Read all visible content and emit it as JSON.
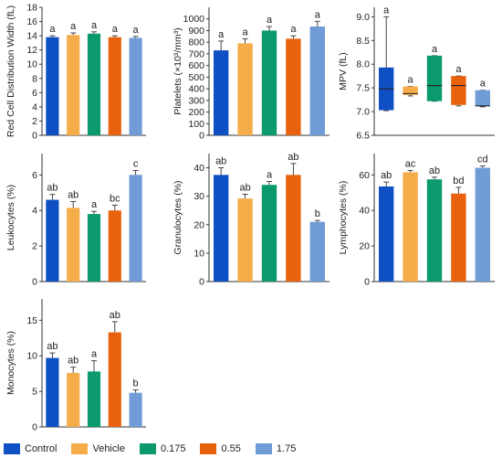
{
  "colors": [
    "#0f4fc4",
    "#f5ad4a",
    "#0a9a6e",
    "#e8610c",
    "#6f9bd7"
  ],
  "legend": [
    "Control",
    "Vehicle",
    "0.175",
    "0.55",
    "1.75"
  ],
  "chart_data": [
    {
      "type": "bar",
      "ylabel": "Red Cell Distribution Width (fL)",
      "ylim": [
        0,
        18
      ],
      "yticks": [
        "0",
        "2",
        "4",
        "6",
        "8",
        "10",
        "12",
        "14",
        "16",
        "18"
      ],
      "values": [
        13.8,
        14.1,
        14.3,
        13.8,
        13.7
      ],
      "errors": [
        0.2,
        0.3,
        0.25,
        0.2,
        0.2
      ],
      "letters": [
        "a",
        "a",
        "a",
        "a",
        "a"
      ]
    },
    {
      "type": "bar",
      "ylabel": "Platelets (×10³/mm³)",
      "ylim": [
        0,
        1100
      ],
      "yticks": [
        "0",
        "100",
        "200",
        "300",
        "400",
        "500",
        "600",
        "700",
        "800",
        "900",
        "1000"
      ],
      "values": [
        730,
        790,
        900,
        830,
        935
      ],
      "errors": [
        80,
        40,
        35,
        25,
        45
      ],
      "letters": [
        "a",
        "a",
        "a",
        "a",
        "a"
      ]
    },
    {
      "type": "boxplot",
      "ylabel": "MPV (fL)",
      "ylim": [
        6.5,
        9.2
      ],
      "yticks": [
        "6.5",
        "7.0",
        "7.5",
        "8.0",
        "8.5",
        "9.0"
      ],
      "boxes": [
        {
          "min": 7.02,
          "q1": 7.03,
          "median": 7.48,
          "q3": 7.93,
          "max": 9.0
        },
        {
          "min": 7.33,
          "q1": 7.35,
          "median": 7.38,
          "q3": 7.53,
          "max": 7.53
        },
        {
          "min": 7.22,
          "q1": 7.22,
          "median": 7.55,
          "q3": 8.18,
          "max": 8.18
        },
        {
          "min": 7.12,
          "q1": 7.14,
          "median": 7.55,
          "q3": 7.75,
          "max": 7.75
        },
        {
          "min": 7.1,
          "q1": 7.12,
          "median": 7.12,
          "q3": 7.45,
          "max": 7.45
        }
      ],
      "letters": [
        "a",
        "a",
        "a",
        "a",
        "a"
      ]
    },
    {
      "type": "bar",
      "ylabel": "Leukocytes (%)",
      "ylim": [
        0,
        7.2
      ],
      "yticks": [
        "0",
        "2",
        "4",
        "6"
      ],
      "values": [
        4.6,
        4.15,
        3.8,
        4.0,
        6.0
      ],
      "errors": [
        0.3,
        0.35,
        0.15,
        0.3,
        0.25
      ],
      "letters": [
        "ab",
        "ab",
        "a",
        "bc",
        "c"
      ]
    },
    {
      "type": "bar",
      "ylabel": "Granulocytes (%)",
      "ylim": [
        0,
        45
      ],
      "yticks": [
        "0",
        "10",
        "20",
        "30",
        "40"
      ],
      "values": [
        37.5,
        29.2,
        34.0,
        37.5,
        21.0
      ],
      "errors": [
        2.5,
        1.5,
        1.2,
        4.0,
        0.5
      ],
      "letters": [
        "ab",
        "ab",
        "a",
        "ab",
        "b"
      ]
    },
    {
      "type": "bar",
      "ylabel": "Lymphocytes (%)",
      "ylim": [
        0,
        72
      ],
      "yticks": [
        "0",
        "20",
        "40",
        "60"
      ],
      "values": [
        53.5,
        61.5,
        57.5,
        49.5,
        64.0
      ],
      "errors": [
        2.5,
        1.0,
        1.2,
        3.5,
        1.0
      ],
      "letters": [
        "ab",
        "ac",
        "ab",
        "bd",
        "cd"
      ]
    },
    {
      "type": "bar",
      "ylabel": "Monocytes (%)",
      "ylim": [
        0,
        18
      ],
      "yticks": [
        "0",
        "5",
        "10",
        "15"
      ],
      "values": [
        9.7,
        7.6,
        7.8,
        13.3,
        4.8
      ],
      "errors": [
        0.7,
        0.8,
        1.5,
        1.5,
        0.4
      ],
      "letters": [
        "ab",
        "ab",
        "a",
        "ab",
        "b"
      ]
    }
  ]
}
